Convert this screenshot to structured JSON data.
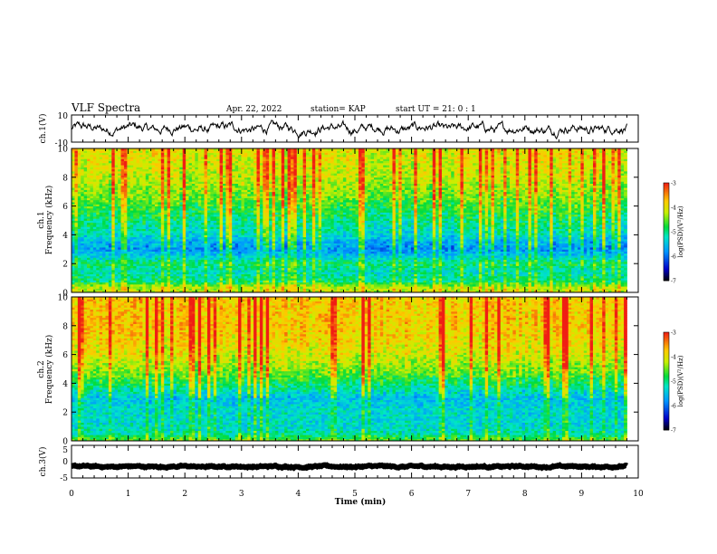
{
  "header": {
    "title": "VLF Spectra",
    "date": "Apr. 22, 2022",
    "station": "station= KAP",
    "start": "start  UT  =  21: 0  : 1"
  },
  "chart_data": [
    {
      "type": "line",
      "name": "ch1-waveform",
      "ylabel": "ch.1(V)",
      "ylim": [
        -10,
        10
      ],
      "yticks": [
        "10",
        "-10"
      ],
      "xlim": [
        0,
        10
      ],
      "data_end_min": 9.8,
      "mean": 0,
      "amplitude": 4,
      "color": "#000000"
    },
    {
      "type": "heatmap",
      "name": "ch1-spectrogram",
      "ylabel": "ch.1\nFrequency (kHz)",
      "ylabel_lines": [
        "ch.1",
        "Frequency (kHz)"
      ],
      "ylim": [
        0,
        10
      ],
      "yticks": [
        "0",
        "2",
        "4",
        "6",
        "8",
        "10"
      ],
      "xlim": [
        0,
        10
      ],
      "data_end_min": 9.8,
      "colorbar": {
        "label": "log(PSD)(V²/Hz)",
        "range": [
          -7,
          -3
        ],
        "ticks": [
          "-7",
          "-6",
          "-5",
          "-4",
          "-3"
        ]
      },
      "profile": [
        {
          "f": 0.0,
          "v": -4.2
        },
        {
          "f": 0.4,
          "v": -4.3
        },
        {
          "f": 0.8,
          "v": -5.0
        },
        {
          "f": 1.5,
          "v": -5.2
        },
        {
          "f": 2.0,
          "v": -4.9
        },
        {
          "f": 2.5,
          "v": -5.4
        },
        {
          "f": 3.0,
          "v": -5.8
        },
        {
          "f": 3.5,
          "v": -5.6
        },
        {
          "f": 4.0,
          "v": -5.3
        },
        {
          "f": 5.0,
          "v": -5.0
        },
        {
          "f": 6.0,
          "v": -4.7
        },
        {
          "f": 7.0,
          "v": -4.4
        },
        {
          "f": 8.0,
          "v": -4.2
        },
        {
          "f": 9.0,
          "v": -4.1
        },
        {
          "f": 10.0,
          "v": -4.0
        }
      ]
    },
    {
      "type": "heatmap",
      "name": "ch2-spectrogram",
      "ylabel": "ch.2\nFrequency (kHz)",
      "ylabel_lines": [
        "ch.2",
        "Frequency (kHz)"
      ],
      "ylim": [
        0,
        10
      ],
      "yticks": [
        "0",
        "2",
        "4",
        "6",
        "8",
        "10"
      ],
      "xlim": [
        0,
        10
      ],
      "data_end_min": 9.8,
      "colorbar": {
        "label": "log(PSD)(V²/Hz)",
        "range": [
          -7,
          -3
        ],
        "ticks": [
          "-7",
          "-6",
          "-5",
          "-4",
          "-3"
        ]
      },
      "profile": [
        {
          "f": 0.0,
          "v": -4.5
        },
        {
          "f": 0.5,
          "v": -5.1
        },
        {
          "f": 1.0,
          "v": -5.3
        },
        {
          "f": 2.0,
          "v": -5.3
        },
        {
          "f": 3.0,
          "v": -5.5
        },
        {
          "f": 3.5,
          "v": -5.2
        },
        {
          "f": 4.0,
          "v": -4.9
        },
        {
          "f": 5.0,
          "v": -4.4
        },
        {
          "f": 6.0,
          "v": -4.1
        },
        {
          "f": 7.0,
          "v": -3.9
        },
        {
          "f": 8.0,
          "v": -3.8
        },
        {
          "f": 9.0,
          "v": -3.8
        },
        {
          "f": 10.0,
          "v": -3.8
        }
      ]
    },
    {
      "type": "line",
      "name": "ch3-waveform",
      "ylabel": "ch.3(V)",
      "ylim": [
        -5,
        5
      ],
      "yticks": [
        "5",
        "0",
        "-5"
      ],
      "xlim": [
        0,
        10
      ],
      "data_end_min": 9.8,
      "mean": -1.5,
      "amplitude": 0.3,
      "color": "#000000"
    }
  ],
  "x_axis": {
    "label": "Time (min)",
    "ticks": [
      "0",
      "1",
      "2",
      "3",
      "4",
      "5",
      "6",
      "7",
      "8",
      "9",
      "10"
    ]
  }
}
